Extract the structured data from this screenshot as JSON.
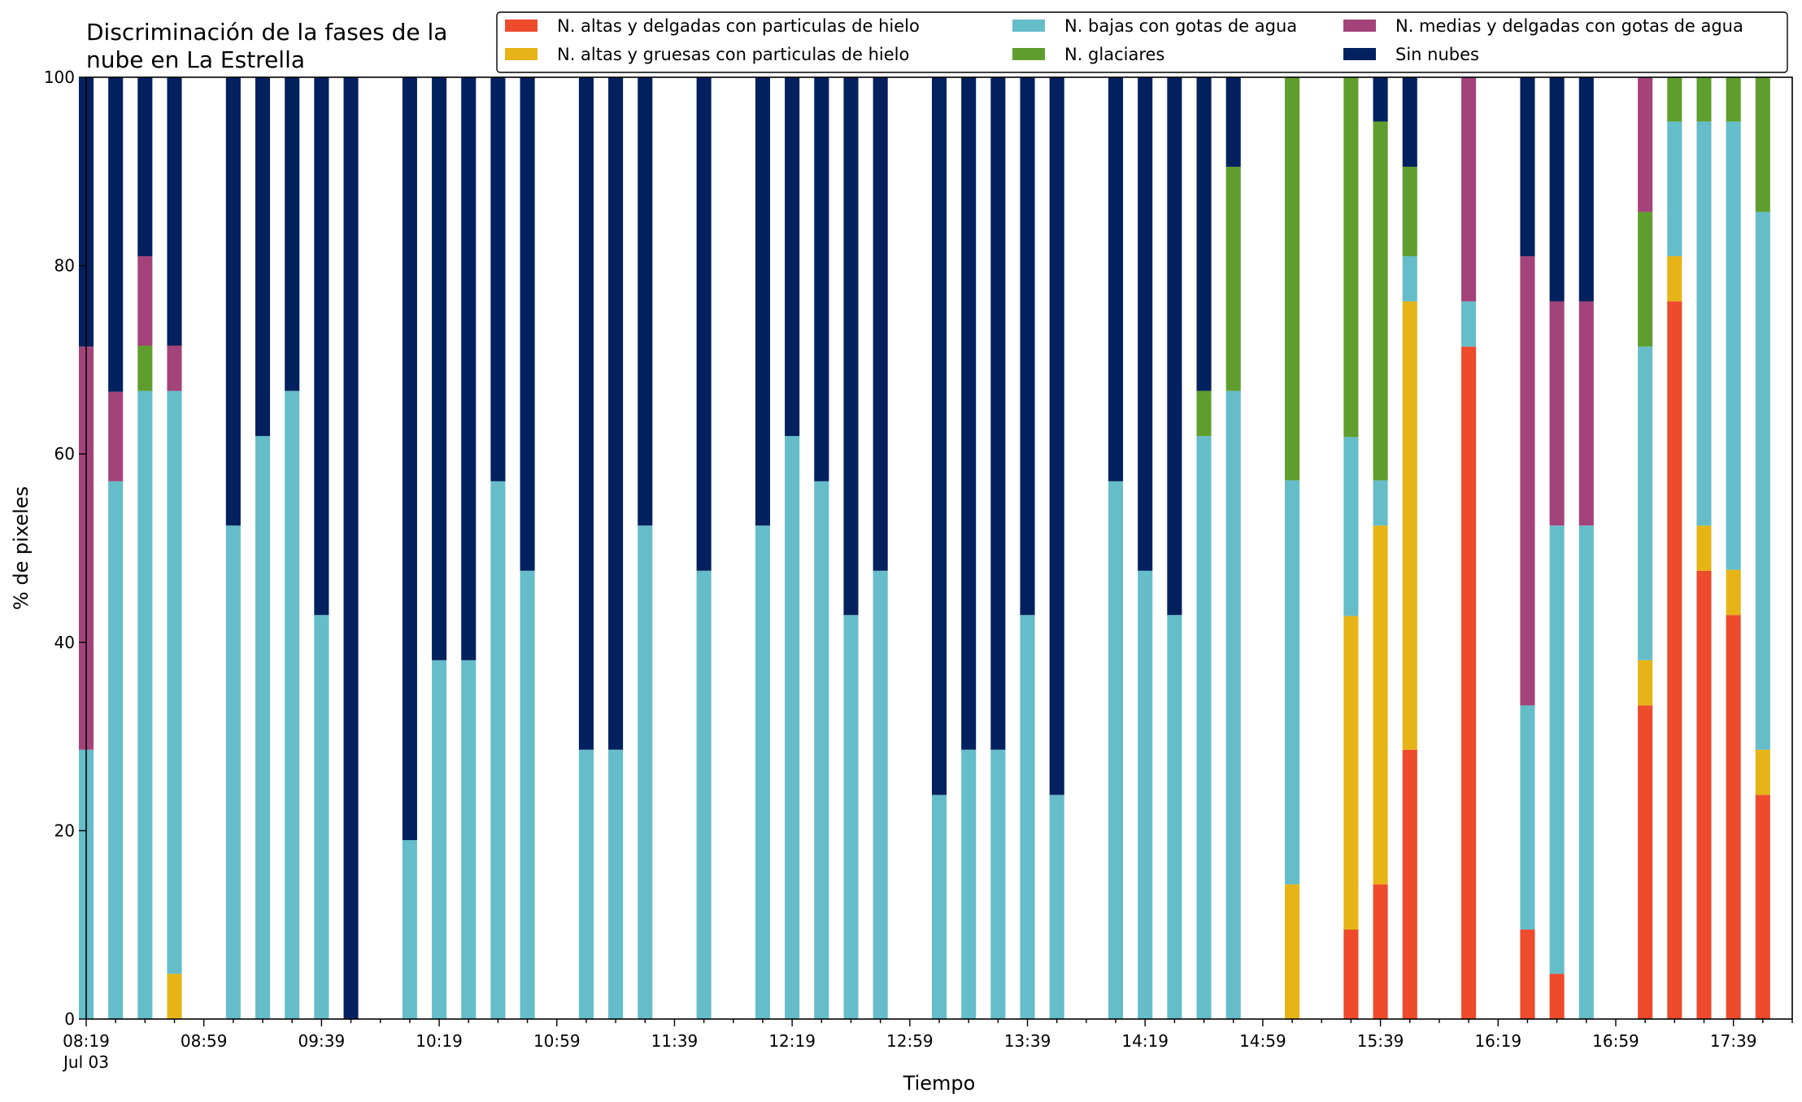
{
  "chart_data": {
    "type": "bar",
    "stacked": true,
    "title_lines": [
      "Discriminación de la fases de la",
      "nube en La Estrella"
    ],
    "xlabel": "Tiempo",
    "ylabel": "% de pixeles",
    "ylim": [
      0,
      100
    ],
    "yticks": [
      0,
      20,
      40,
      60,
      80,
      100
    ],
    "x_start": "08:19",
    "x_end": "17:59",
    "x_step_minutes": 10,
    "x_tick_labels": [
      {
        "time": "08:19",
        "label": "08:19",
        "sublabel": "Jul 03"
      },
      {
        "time": "08:59",
        "label": "08:59"
      },
      {
        "time": "09:39",
        "label": "09:39"
      },
      {
        "time": "10:19",
        "label": "10:19"
      },
      {
        "time": "10:59",
        "label": "10:59"
      },
      {
        "time": "11:39",
        "label": "11:39"
      },
      {
        "time": "12:19",
        "label": "12:19"
      },
      {
        "time": "12:59",
        "label": "12:59"
      },
      {
        "time": "13:39",
        "label": "13:39"
      },
      {
        "time": "14:19",
        "label": "14:19"
      },
      {
        "time": "14:59",
        "label": "14:59"
      },
      {
        "time": "15:39",
        "label": "15:39"
      },
      {
        "time": "16:19",
        "label": "16:19"
      },
      {
        "time": "16:59",
        "label": "16:59"
      },
      {
        "time": "17:39",
        "label": "17:39"
      }
    ],
    "legend_position": "top-right",
    "legend_columns": 3,
    "series": [
      {
        "key": "a",
        "name": "N. altas y delgadas con particulas de hielo",
        "color": "#ee4a2c"
      },
      {
        "key": "b",
        "name": "N. altas y gruesas con particulas de hielo",
        "color": "#e6b417"
      },
      {
        "key": "c",
        "name": "N. bajas con gotas de agua",
        "color": "#65bdc9"
      },
      {
        "key": "d",
        "name": "N. glaciares",
        "color": "#5f9e2e"
      },
      {
        "key": "e",
        "name": "N. medias y delgadas con gotas de agua",
        "color": "#a3437a"
      },
      {
        "key": "f",
        "name": "Sin nubes",
        "color": "#03215f"
      }
    ],
    "bars": [
      {
        "time": "08:19",
        "a": 0,
        "b": 0,
        "c": 28.6,
        "d": 0,
        "e": 42.8,
        "f": 28.6
      },
      {
        "time": "08:29",
        "a": 0,
        "b": 0,
        "c": 57.1,
        "d": 0,
        "e": 9.5,
        "f": 33.4
      },
      {
        "time": "08:39",
        "a": 0,
        "b": 0,
        "c": 66.7,
        "d": 4.8,
        "e": 9.5,
        "f": 19.0
      },
      {
        "time": "08:49",
        "a": 0,
        "b": 4.8,
        "c": 61.9,
        "d": 0,
        "e": 4.8,
        "f": 28.5
      },
      {
        "time": "09:09",
        "a": 0,
        "b": 0,
        "c": 52.4,
        "d": 0,
        "e": 0,
        "f": 47.6
      },
      {
        "time": "09:19",
        "a": 0,
        "b": 0,
        "c": 61.9,
        "d": 0,
        "e": 0,
        "f": 38.1
      },
      {
        "time": "09:29",
        "a": 0,
        "b": 0,
        "c": 66.7,
        "d": 0,
        "e": 0,
        "f": 33.3
      },
      {
        "time": "09:39",
        "a": 0,
        "b": 0,
        "c": 42.9,
        "d": 0,
        "e": 0,
        "f": 57.1
      },
      {
        "time": "09:49",
        "a": 0,
        "b": 0,
        "c": 0,
        "d": 0,
        "e": 0,
        "f": 100
      },
      {
        "time": "10:09",
        "a": 0,
        "b": 0,
        "c": 19.0,
        "d": 0,
        "e": 0,
        "f": 81.0
      },
      {
        "time": "10:19",
        "a": 0,
        "b": 0,
        "c": 38.1,
        "d": 0,
        "e": 0,
        "f": 61.9
      },
      {
        "time": "10:29",
        "a": 0,
        "b": 0,
        "c": 38.1,
        "d": 0,
        "e": 0,
        "f": 61.9
      },
      {
        "time": "10:39",
        "a": 0,
        "b": 0,
        "c": 57.1,
        "d": 0,
        "e": 0,
        "f": 42.9
      },
      {
        "time": "10:49",
        "a": 0,
        "b": 0,
        "c": 47.6,
        "d": 0,
        "e": 0,
        "f": 52.4
      },
      {
        "time": "11:09",
        "a": 0,
        "b": 0,
        "c": 28.6,
        "d": 0,
        "e": 0,
        "f": 71.4
      },
      {
        "time": "11:19",
        "a": 0,
        "b": 0,
        "c": 28.6,
        "d": 0,
        "e": 0,
        "f": 71.4
      },
      {
        "time": "11:29",
        "a": 0,
        "b": 0,
        "c": 52.4,
        "d": 0,
        "e": 0,
        "f": 47.6
      },
      {
        "time": "11:49",
        "a": 0,
        "b": 0,
        "c": 47.6,
        "d": 0,
        "e": 0,
        "f": 52.4
      },
      {
        "time": "12:09",
        "a": 0,
        "b": 0,
        "c": 52.4,
        "d": 0,
        "e": 0,
        "f": 47.6
      },
      {
        "time": "12:19",
        "a": 0,
        "b": 0,
        "c": 61.9,
        "d": 0,
        "e": 0,
        "f": 38.1
      },
      {
        "time": "12:29",
        "a": 0,
        "b": 0,
        "c": 57.1,
        "d": 0,
        "e": 0,
        "f": 42.9
      },
      {
        "time": "12:39",
        "a": 0,
        "b": 0,
        "c": 42.9,
        "d": 0,
        "e": 0,
        "f": 57.1
      },
      {
        "time": "12:49",
        "a": 0,
        "b": 0,
        "c": 47.6,
        "d": 0,
        "e": 0,
        "f": 52.4
      },
      {
        "time": "13:09",
        "a": 0,
        "b": 0,
        "c": 23.8,
        "d": 0,
        "e": 0,
        "f": 76.2
      },
      {
        "time": "13:19",
        "a": 0,
        "b": 0,
        "c": 28.6,
        "d": 0,
        "e": 0,
        "f": 71.4
      },
      {
        "time": "13:29",
        "a": 0,
        "b": 0,
        "c": 28.6,
        "d": 0,
        "e": 0,
        "f": 71.4
      },
      {
        "time": "13:39",
        "a": 0,
        "b": 0,
        "c": 42.9,
        "d": 0,
        "e": 0,
        "f": 57.1
      },
      {
        "time": "13:49",
        "a": 0,
        "b": 0,
        "c": 23.8,
        "d": 0,
        "e": 0,
        "f": 76.2
      },
      {
        "time": "14:09",
        "a": 0,
        "b": 0,
        "c": 57.1,
        "d": 0,
        "e": 0,
        "f": 42.9
      },
      {
        "time": "14:19",
        "a": 0,
        "b": 0,
        "c": 47.6,
        "d": 0,
        "e": 0,
        "f": 52.4
      },
      {
        "time": "14:29",
        "a": 0,
        "b": 0,
        "c": 42.9,
        "d": 0,
        "e": 0,
        "f": 57.1
      },
      {
        "time": "14:39",
        "a": 0,
        "b": 0,
        "c": 61.9,
        "d": 4.8,
        "e": 0,
        "f": 33.3
      },
      {
        "time": "14:49",
        "a": 0,
        "b": 0,
        "c": 66.7,
        "d": 23.8,
        "e": 0,
        "f": 9.5
      },
      {
        "time": "15:09",
        "a": 0,
        "b": 14.3,
        "c": 42.9,
        "d": 42.8,
        "e": 0,
        "f": 0
      },
      {
        "time": "15:29",
        "a": 9.5,
        "b": 33.3,
        "c": 19.0,
        "d": 38.2,
        "e": 0,
        "f": 0
      },
      {
        "time": "15:39",
        "a": 14.3,
        "b": 38.1,
        "c": 4.8,
        "d": 38.1,
        "e": 0,
        "f": 4.7
      },
      {
        "time": "15:49",
        "a": 28.6,
        "b": 47.6,
        "c": 4.8,
        "d": 9.5,
        "e": 0,
        "f": 9.5
      },
      {
        "time": "16:09",
        "a": 71.4,
        "b": 0,
        "c": 4.8,
        "d": 0,
        "e": 23.8,
        "f": 0
      },
      {
        "time": "16:29",
        "a": 9.5,
        "b": 0,
        "c": 23.8,
        "d": 0,
        "e": 47.7,
        "f": 19.0
      },
      {
        "time": "16:39",
        "a": 4.8,
        "b": 0,
        "c": 47.6,
        "d": 0,
        "e": 23.8,
        "f": 23.8
      },
      {
        "time": "16:49",
        "a": 0,
        "b": 0,
        "c": 52.4,
        "d": 0,
        "e": 23.8,
        "f": 23.8
      },
      {
        "time": "17:09",
        "a": 33.3,
        "b": 4.8,
        "c": 33.3,
        "d": 14.3,
        "e": 14.3,
        "f": 0
      },
      {
        "time": "17:19",
        "a": 76.2,
        "b": 4.8,
        "c": 14.3,
        "d": 4.7,
        "e": 0,
        "f": 0
      },
      {
        "time": "17:29",
        "a": 47.6,
        "b": 4.8,
        "c": 42.9,
        "d": 4.7,
        "e": 0,
        "f": 0
      },
      {
        "time": "17:39",
        "a": 42.9,
        "b": 4.8,
        "c": 47.6,
        "d": 4.7,
        "e": 0,
        "f": 0
      },
      {
        "time": "17:49",
        "a": 23.8,
        "b": 4.8,
        "c": 57.1,
        "d": 14.3,
        "e": 0,
        "f": 0
      }
    ]
  }
}
